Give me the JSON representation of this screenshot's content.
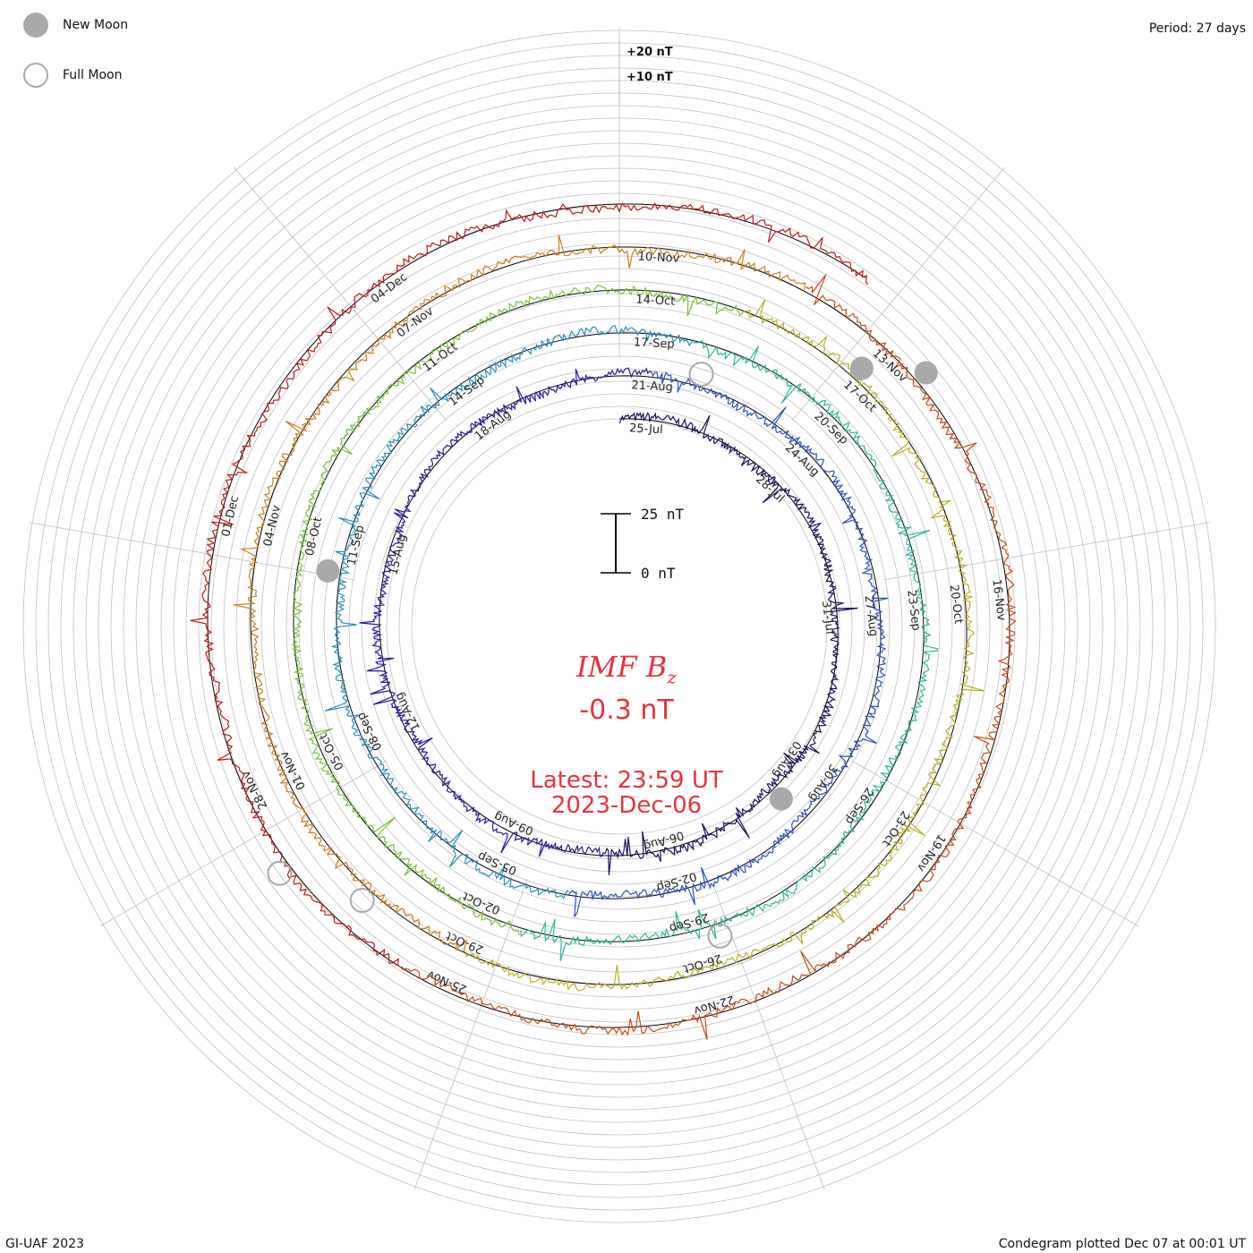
{
  "legend": {
    "new_moon_label": "New Moon",
    "full_moon_label": "Full Moon"
  },
  "header": {
    "period": "Period: 27 days"
  },
  "footer": {
    "credit": "GI-UAF 2023",
    "plotted": "Condegram plotted Dec 07 at 00:01 UT"
  },
  "scale": {
    "ring_labels": [
      "+20 nT",
      "+10 nT"
    ],
    "bar_top": "25 nT",
    "bar_bottom": "0 nT"
  },
  "center": {
    "title_main": "IMF B",
    "title_sub": "z",
    "value": "-0.3 nT",
    "latest_line1": "Latest: 23:59 UT",
    "latest_line2": "2023-Dec-06"
  },
  "colors": {
    "accent": "#e8333a",
    "grid": "#c0c0c0",
    "cycles": [
      "#1e0f5a",
      "#2a1a9a",
      "#2f4fc0",
      "#2a90b8",
      "#2cb79a",
      "#7cc23a",
      "#b8b020",
      "#c9801c",
      "#c84a1a",
      "#c01818"
    ]
  },
  "chart_data": {
    "type": "condegram",
    "title": "IMF Bz",
    "period_days": 27,
    "units": "nT",
    "latest_value": -0.3,
    "cycles": [
      {
        "name": "cycle-1",
        "labels": [
          "25-Jul",
          "28-Jul",
          "31-Jul",
          "03-Aug",
          "06-Aug",
          "09-Aug",
          "12-Aug",
          "15-Aug",
          "18-Aug"
        ]
      },
      {
        "name": "cycle-2",
        "labels": [
          "21-Aug",
          "24-Aug",
          "27-Aug",
          "30-Aug",
          "02-Sep",
          "05-Sep",
          "08-Sep",
          "11-Sep",
          "14-Sep"
        ]
      },
      {
        "name": "cycle-3",
        "labels": [
          "17-Sep",
          "20-Sep",
          "23-Sep",
          "26-Sep",
          "29-Sep",
          "02-Oct",
          "05-Oct",
          "08-Oct",
          "11-Oct"
        ]
      },
      {
        "name": "cycle-4",
        "labels": [
          "14-Oct",
          "17-Oct",
          "20-Oct",
          "23-Oct",
          "26-Oct",
          "29-Oct",
          "01-Nov",
          "04-Nov",
          "07-Nov"
        ]
      },
      {
        "name": "cycle-5",
        "labels": [
          "10-Nov",
          "13-Nov",
          "16-Nov",
          "19-Nov",
          "22-Nov",
          "25-Nov",
          "28-Nov",
          "01-Dec",
          "04-Dec"
        ]
      }
    ]
  }
}
